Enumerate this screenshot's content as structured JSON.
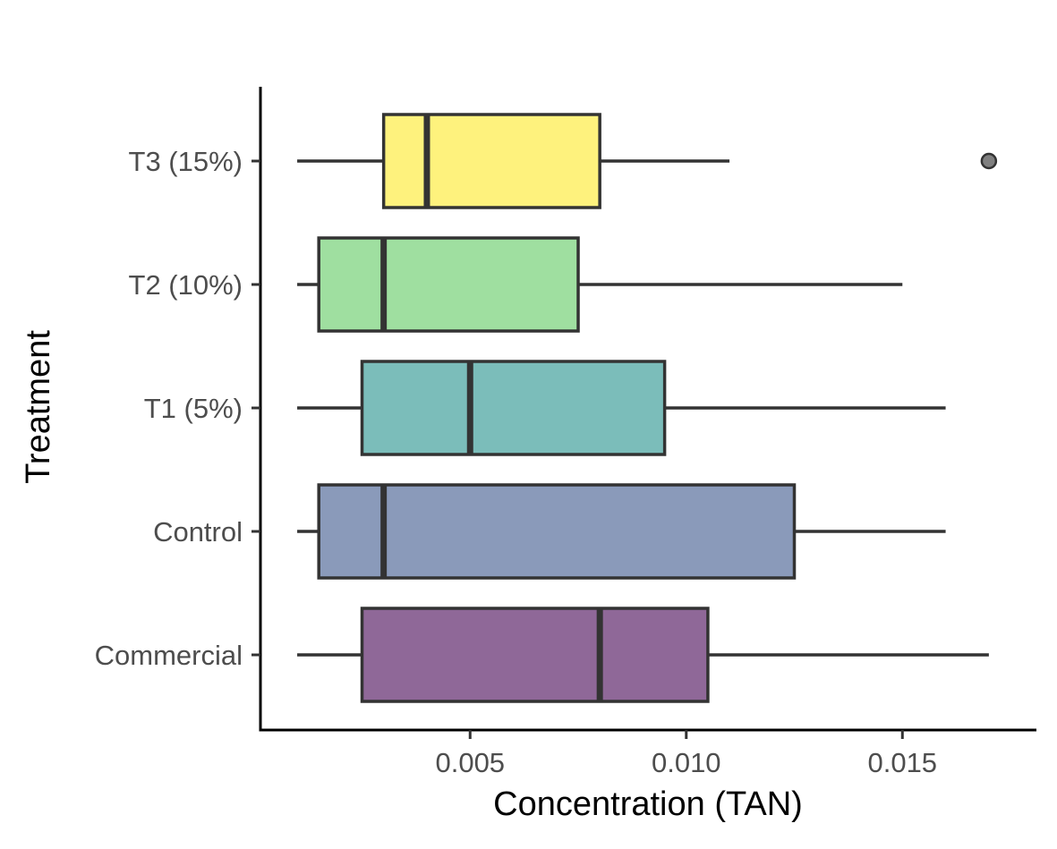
{
  "chart_data": {
    "type": "boxplot",
    "orientation": "horizontal",
    "xlabel": "Concentration (TAN)",
    "ylabel": "Treatment",
    "xlim": [
      0.00015,
      0.0181
    ],
    "x_ticks": [
      0.005,
      0.01,
      0.015
    ],
    "x_tick_labels": [
      "0.005",
      "0.010",
      "0.015"
    ],
    "grid": false,
    "legend": "none",
    "categories": [
      "Commercial",
      "Control",
      "T1 (5%)",
      "T2 (10%)",
      "T3 (15%)"
    ],
    "boxes": [
      {
        "category": "Commercial",
        "whisker_low": 0.001,
        "q1": 0.0025,
        "median": 0.008,
        "q3": 0.0105,
        "whisker_high": 0.017,
        "outliers": [],
        "color": "#8f6898"
      },
      {
        "category": "Control",
        "whisker_low": 0.001,
        "q1": 0.0015,
        "median": 0.003,
        "q3": 0.0125,
        "whisker_high": 0.016,
        "outliers": [],
        "color": "#8a9aba"
      },
      {
        "category": "T1 (5%)",
        "whisker_low": 0.001,
        "q1": 0.0025,
        "median": 0.005,
        "q3": 0.0095,
        "whisker_high": 0.016,
        "outliers": [],
        "color": "#7bbdba"
      },
      {
        "category": "T2 (10%)",
        "whisker_low": 0.001,
        "q1": 0.0015,
        "median": 0.003,
        "q3": 0.0075,
        "whisker_high": 0.015,
        "outliers": [],
        "color": "#9fdfa0"
      },
      {
        "category": "T3 (15%)",
        "whisker_low": 0.001,
        "q1": 0.003,
        "median": 0.004,
        "q3": 0.008,
        "whisker_high": 0.011,
        "outliers": [
          0.017
        ],
        "color": "#fef27d"
      }
    ],
    "outline_color": "#333333",
    "outlier_color": "#808080"
  }
}
